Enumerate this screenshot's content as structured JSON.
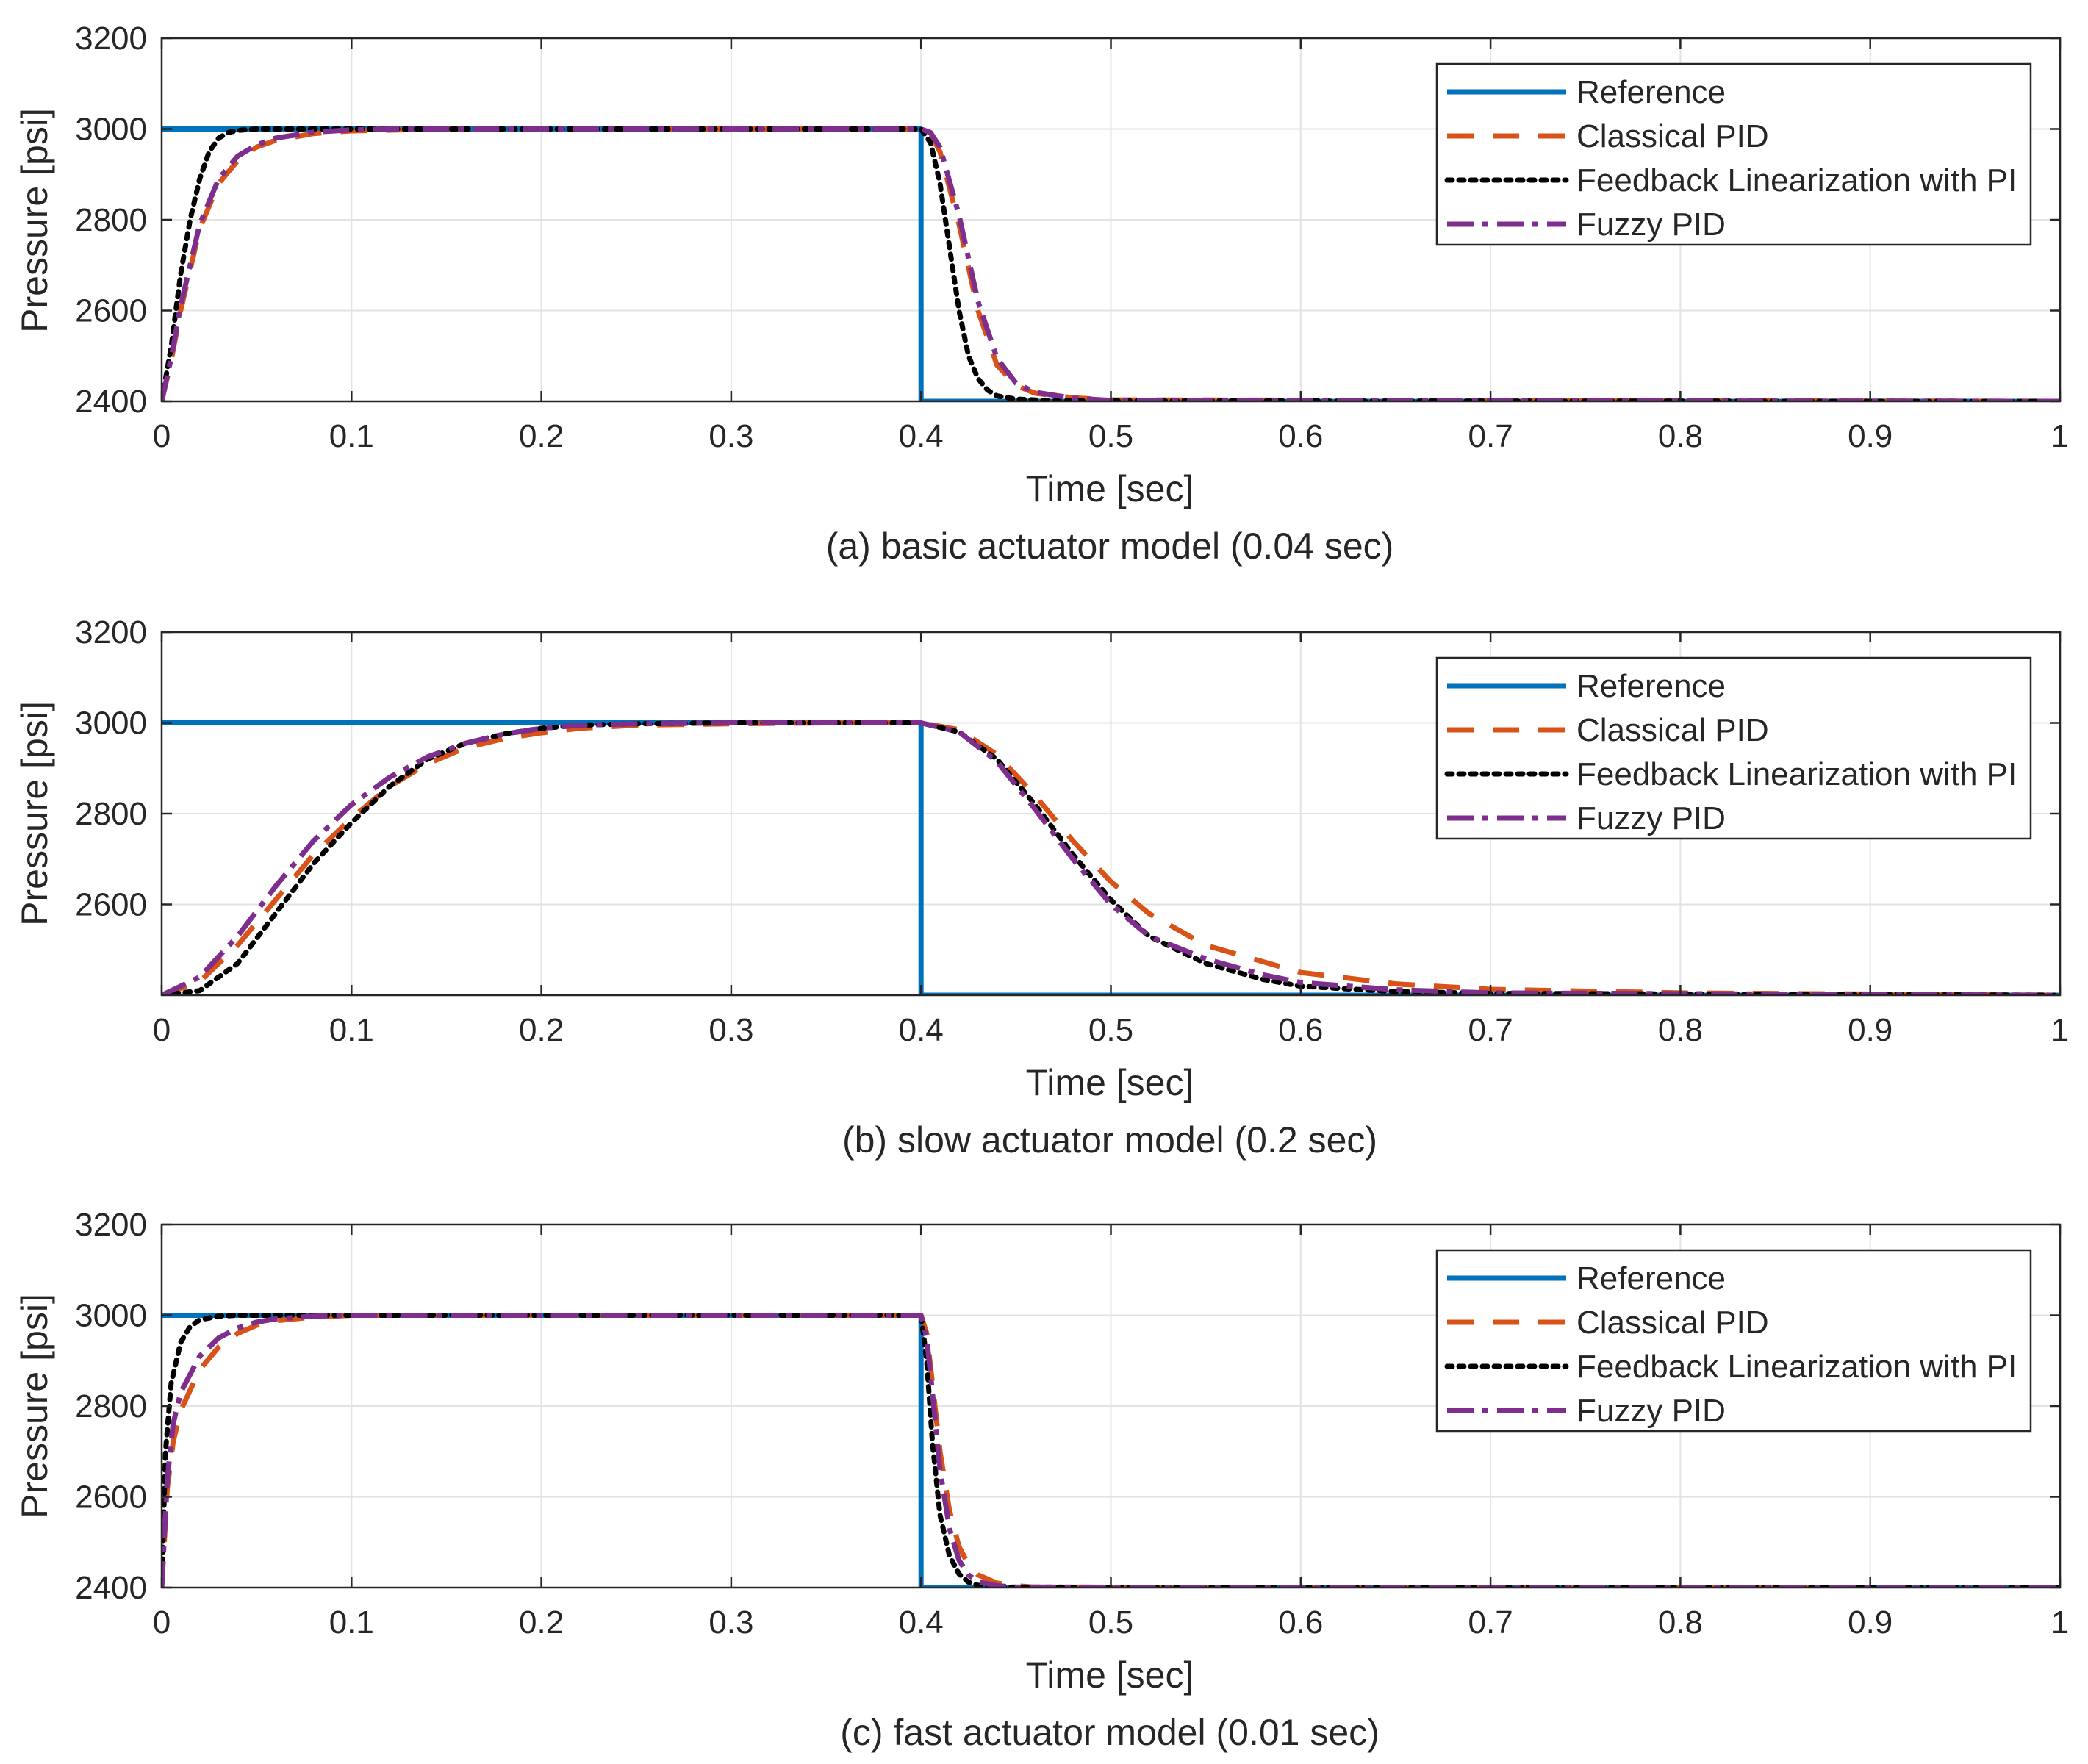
{
  "chart_data": [
    {
      "type": "line",
      "title": "(a) basic actuator model (0.04 sec)",
      "xlabel": "Time [sec]",
      "ylabel": "Pressure [psi]",
      "xlim": [
        0,
        1
      ],
      "ylim": [
        2400,
        3200
      ],
      "xticks": [
        "0",
        "0.1",
        "0.2",
        "0.3",
        "0.4",
        "0.5",
        "0.6",
        "0.7",
        "0.8",
        "0.9",
        "1"
      ],
      "yticks": [
        "2400",
        "2600",
        "2800",
        "3000",
        "3200"
      ],
      "grid": true,
      "legend_position": "top-right",
      "series": [
        {
          "name": "Reference",
          "color": "#0072BD",
          "style": "solid",
          "x": [
            0,
            0.4,
            0.4,
            1.0
          ],
          "y": [
            3000,
            3000,
            2400,
            2400
          ]
        },
        {
          "name": "Classical PID",
          "color": "#D95319",
          "style": "dashed",
          "x": [
            0,
            0.005,
            0.01,
            0.02,
            0.03,
            0.04,
            0.05,
            0.06,
            0.08,
            0.1,
            0.15,
            0.4,
            0.405,
            0.41,
            0.42,
            0.43,
            0.44,
            0.45,
            0.46,
            0.48,
            0.5,
            1.0
          ],
          "y": [
            2400,
            2490,
            2600,
            2780,
            2880,
            2930,
            2960,
            2975,
            2990,
            2996,
            3000,
            3000,
            2990,
            2950,
            2790,
            2600,
            2480,
            2435,
            2418,
            2408,
            2403,
            2400
          ]
        },
        {
          "name": "Feedback Linearization with PI",
          "color": "#000000",
          "style": "dotted",
          "x": [
            0,
            0.005,
            0.01,
            0.015,
            0.02,
            0.025,
            0.03,
            0.035,
            0.04,
            0.05,
            0.06,
            0.4,
            0.405,
            0.41,
            0.415,
            0.42,
            0.425,
            0.43,
            0.435,
            0.44,
            0.45,
            0.47,
            1.0
          ],
          "y": [
            2400,
            2520,
            2680,
            2800,
            2890,
            2950,
            2980,
            2992,
            2997,
            3000,
            3000,
            3000,
            2970,
            2880,
            2740,
            2600,
            2500,
            2450,
            2425,
            2412,
            2405,
            2401,
            2400
          ]
        },
        {
          "name": "Fuzzy PID",
          "color": "#7E2F8E",
          "style": "dashdot",
          "x": [
            0,
            0.005,
            0.01,
            0.02,
            0.03,
            0.04,
            0.05,
            0.06,
            0.08,
            0.1,
            0.12,
            0.4,
            0.405,
            0.41,
            0.42,
            0.43,
            0.44,
            0.45,
            0.46,
            0.48,
            0.5,
            1.0
          ],
          "y": [
            2400,
            2495,
            2610,
            2790,
            2890,
            2940,
            2965,
            2980,
            2993,
            2998,
            3000,
            3000,
            2992,
            2960,
            2810,
            2620,
            2495,
            2440,
            2420,
            2407,
            2402,
            2400
          ]
        }
      ]
    },
    {
      "type": "line",
      "title": "(b) slow actuator model (0.2 sec)",
      "xlabel": "Time [sec]",
      "ylabel": "Pressure [psi]",
      "xlim": [
        0,
        1
      ],
      "ylim": [
        2400,
        3200
      ],
      "xticks": [
        "0",
        "0.1",
        "0.2",
        "0.3",
        "0.4",
        "0.5",
        "0.6",
        "0.7",
        "0.8",
        "0.9",
        "1"
      ],
      "yticks": [
        "2600",
        "2800",
        "3000",
        "3200"
      ],
      "grid": true,
      "legend_position": "top-right",
      "series": [
        {
          "name": "Reference",
          "color": "#0072BD",
          "style": "solid",
          "x": [
            0,
            0.4,
            0.4,
            1.0
          ],
          "y": [
            3000,
            3000,
            2400,
            2400
          ]
        },
        {
          "name": "Classical PID",
          "color": "#D95319",
          "style": "dashed",
          "x": [
            0,
            0.02,
            0.04,
            0.06,
            0.08,
            0.1,
            0.12,
            0.14,
            0.16,
            0.18,
            0.2,
            0.22,
            0.25,
            0.3,
            0.35,
            0.4,
            0.42,
            0.44,
            0.46,
            0.48,
            0.5,
            0.52,
            0.55,
            0.6,
            0.65,
            0.7,
            0.8,
            1.0
          ],
          "y": [
            2400,
            2430,
            2510,
            2610,
            2710,
            2790,
            2860,
            2910,
            2945,
            2965,
            2978,
            2988,
            2995,
            2998,
            3000,
            3000,
            2985,
            2930,
            2840,
            2740,
            2650,
            2580,
            2510,
            2450,
            2425,
            2413,
            2405,
            2400
          ]
        },
        {
          "name": "Feedback Linearization with PI",
          "color": "#000000",
          "style": "dotted",
          "x": [
            0,
            0.02,
            0.04,
            0.06,
            0.08,
            0.1,
            0.12,
            0.14,
            0.16,
            0.18,
            0.2,
            0.22,
            0.25,
            0.3,
            0.4,
            0.42,
            0.44,
            0.46,
            0.48,
            0.5,
            0.52,
            0.55,
            0.58,
            0.6,
            0.65,
            0.7,
            1.0
          ],
          "y": [
            2400,
            2410,
            2470,
            2580,
            2690,
            2780,
            2860,
            2920,
            2955,
            2975,
            2988,
            2995,
            2998,
            3000,
            3000,
            2980,
            2920,
            2820,
            2710,
            2610,
            2530,
            2470,
            2435,
            2420,
            2408,
            2404,
            2400
          ]
        },
        {
          "name": "Fuzzy PID",
          "color": "#7E2F8E",
          "style": "dashdot",
          "x": [
            0,
            0.02,
            0.04,
            0.06,
            0.08,
            0.1,
            0.12,
            0.14,
            0.16,
            0.18,
            0.2,
            0.22,
            0.25,
            0.3,
            0.4,
            0.42,
            0.44,
            0.46,
            0.48,
            0.5,
            0.52,
            0.55,
            0.58,
            0.6,
            0.65,
            0.7,
            1.0
          ],
          "y": [
            2400,
            2440,
            2530,
            2640,
            2740,
            2820,
            2880,
            2925,
            2955,
            2975,
            2988,
            2995,
            2998,
            3000,
            3000,
            2980,
            2915,
            2810,
            2700,
            2600,
            2530,
            2480,
            2445,
            2428,
            2412,
            2405,
            2400
          ]
        }
      ]
    },
    {
      "type": "line",
      "title": "(c) fast actuator model (0.01 sec)",
      "xlabel": "Time [sec]",
      "ylabel": "Pressure [psi]",
      "xlim": [
        0,
        1
      ],
      "ylim": [
        2400,
        3200
      ],
      "xticks": [
        "0",
        "0.1",
        "0.2",
        "0.3",
        "0.4",
        "0.5",
        "0.6",
        "0.7",
        "0.8",
        "0.9",
        "1"
      ],
      "yticks": [
        "2400",
        "2600",
        "2800",
        "3000",
        "3200"
      ],
      "grid": true,
      "legend_position": "top-right",
      "series": [
        {
          "name": "Reference",
          "color": "#0072BD",
          "style": "solid",
          "x": [
            0,
            0.4,
            0.4,
            1.0
          ],
          "y": [
            3000,
            3000,
            2400,
            2400
          ]
        },
        {
          "name": "Classical PID",
          "color": "#D95319",
          "style": "dashed",
          "x": [
            0,
            0.003,
            0.006,
            0.01,
            0.02,
            0.03,
            0.04,
            0.05,
            0.06,
            0.08,
            0.1,
            0.4,
            0.403,
            0.406,
            0.41,
            0.415,
            0.42,
            0.425,
            0.43,
            0.44,
            0.45,
            0.46,
            1.0
          ],
          "y": [
            2400,
            2620,
            2720,
            2790,
            2880,
            2930,
            2960,
            2978,
            2988,
            2996,
            3000,
            3000,
            2960,
            2850,
            2700,
            2570,
            2490,
            2450,
            2428,
            2410,
            2404,
            2401,
            2400
          ]
        },
        {
          "name": "Feedback Linearization with PI",
          "color": "#000000",
          "style": "dotted",
          "x": [
            0,
            0.002,
            0.005,
            0.01,
            0.015,
            0.02,
            0.03,
            0.04,
            0.4,
            0.403,
            0.406,
            0.41,
            0.415,
            0.42,
            0.425,
            0.43,
            0.44,
            1.0
          ],
          "y": [
            2400,
            2700,
            2850,
            2940,
            2975,
            2990,
            2998,
            3000,
            3000,
            2900,
            2720,
            2560,
            2470,
            2430,
            2412,
            2405,
            2401,
            2400
          ]
        },
        {
          "name": "Fuzzy PID",
          "color": "#7E2F8E",
          "style": "dashdot",
          "x": [
            0,
            0.003,
            0.006,
            0.01,
            0.02,
            0.03,
            0.04,
            0.05,
            0.06,
            0.08,
            0.1,
            0.4,
            0.403,
            0.406,
            0.41,
            0.415,
            0.42,
            0.425,
            0.43,
            0.44,
            0.45,
            1.0
          ],
          "y": [
            2400,
            2640,
            2760,
            2830,
            2910,
            2950,
            2972,
            2985,
            2992,
            2998,
            3000,
            3000,
            2950,
            2830,
            2660,
            2530,
            2460,
            2428,
            2413,
            2404,
            2401,
            2400
          ]
        }
      ]
    }
  ]
}
